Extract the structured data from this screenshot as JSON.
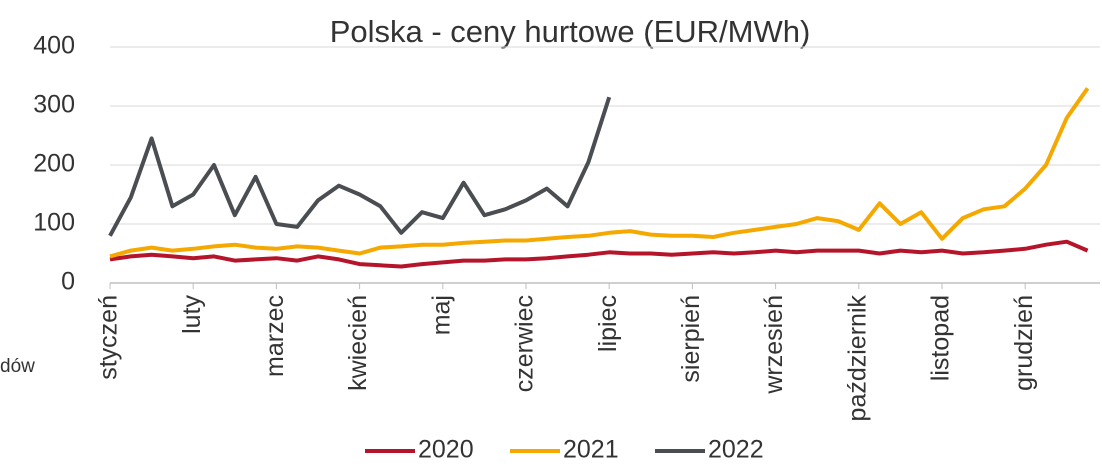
{
  "chart_data": {
    "type": "line",
    "title": "Polska - ceny hurtowe (EUR/MWh)",
    "annotation": "dów",
    "categories": [
      "styczeń",
      null,
      null,
      null,
      "luty",
      null,
      null,
      null,
      "marzec",
      null,
      null,
      null,
      "kwiecień",
      null,
      null,
      null,
      "maj",
      null,
      null,
      null,
      "czerwiec",
      null,
      null,
      null,
      "lipiec",
      null,
      null,
      null,
      "sierpień",
      null,
      null,
      null,
      "wrzesień",
      null,
      null,
      null,
      "październik",
      null,
      null,
      null,
      "listopad",
      null,
      null,
      null,
      "grudzień",
      null,
      null,
      null
    ],
    "series": [
      {
        "name": "2020",
        "color": "#b5152b",
        "values": [
          40,
          45,
          48,
          45,
          42,
          45,
          38,
          40,
          42,
          38,
          45,
          40,
          32,
          30,
          28,
          32,
          35,
          38,
          38,
          40,
          40,
          42,
          45,
          48,
          52,
          50,
          50,
          48,
          50,
          52,
          50,
          52,
          55,
          52,
          55,
          55,
          55,
          50,
          55,
          52,
          55,
          50,
          52,
          55,
          58,
          65,
          70,
          55
        ]
      },
      {
        "name": "2021",
        "color": "#f5a800",
        "values": [
          45,
          55,
          60,
          55,
          58,
          62,
          65,
          60,
          58,
          62,
          60,
          55,
          50,
          60,
          62,
          65,
          65,
          68,
          70,
          72,
          72,
          75,
          78,
          80,
          85,
          88,
          82,
          80,
          80,
          78,
          85,
          90,
          95,
          100,
          110,
          105,
          90,
          135,
          100,
          120,
          75,
          110,
          125,
          130,
          160,
          200,
          280,
          330
        ]
      },
      {
        "name": "2022",
        "color": "#4a4d52",
        "values": [
          80,
          145,
          245,
          130,
          150,
          200,
          115,
          180,
          100,
          95,
          140,
          165,
          150,
          130,
          85,
          120,
          110,
          170,
          115,
          125,
          140,
          160,
          130,
          205,
          315,
          null,
          null,
          null,
          null,
          null,
          null,
          null,
          null,
          null,
          null,
          null,
          null,
          null,
          null,
          null,
          null,
          null,
          null,
          null,
          null,
          null,
          null,
          null
        ]
      }
    ],
    "ylim": [
      0,
      400
    ],
    "yticks": [
      0,
      100,
      200,
      300,
      400
    ],
    "grid": true
  }
}
